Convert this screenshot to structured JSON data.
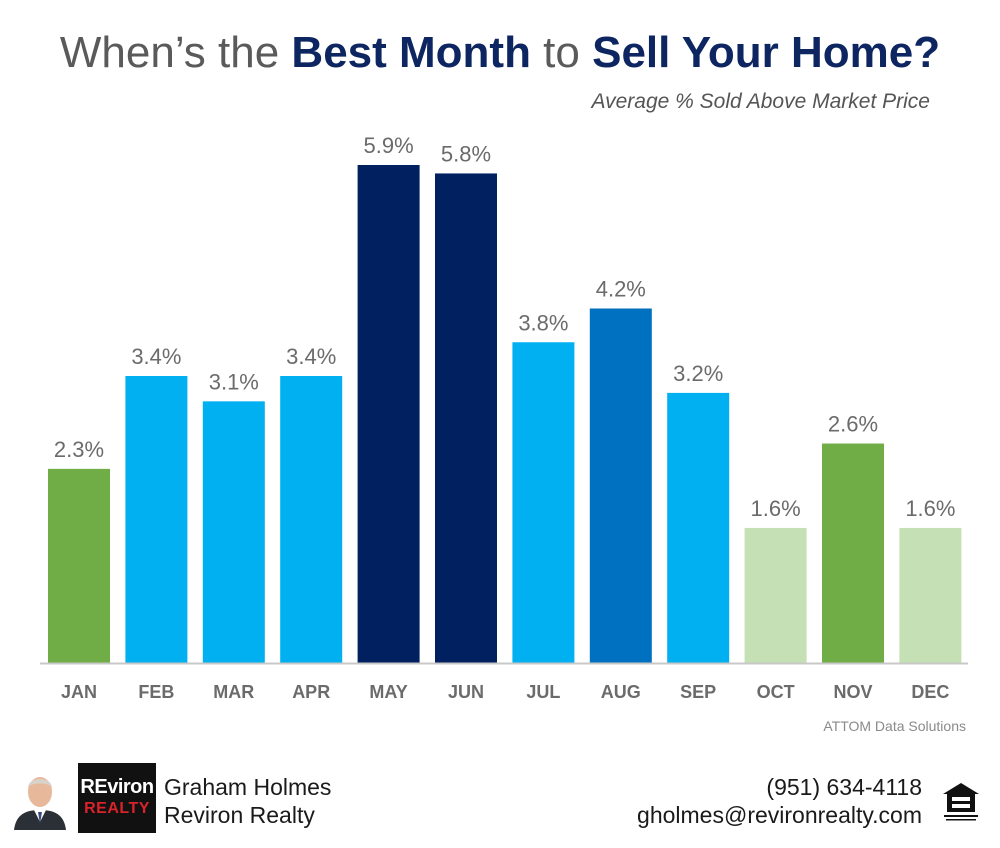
{
  "header": {
    "title_part1": "When’s the ",
    "title_part2": "Best Month",
    "title_part3": " to ",
    "title_part4": "Sell Your Home?",
    "subtitle": "Average % Sold Above Market Price"
  },
  "chart_data": {
    "type": "bar",
    "title": "When’s the Best Month to Sell Your Home?",
    "subtitle": "Average % Sold Above Market Price",
    "categories": [
      "JAN",
      "FEB",
      "MAR",
      "APR",
      "MAY",
      "JUN",
      "JUL",
      "AUG",
      "SEP",
      "OCT",
      "NOV",
      "DEC"
    ],
    "values": [
      2.3,
      3.4,
      3.1,
      3.4,
      5.9,
      5.8,
      3.8,
      4.2,
      3.2,
      1.6,
      2.6,
      1.6
    ],
    "data_labels": [
      "2.3%",
      "3.4%",
      "3.1%",
      "3.4%",
      "5.9%",
      "5.8%",
      "3.8%",
      "4.2%",
      "3.2%",
      "1.6%",
      "2.6%",
      "1.6%"
    ],
    "bar_colors": [
      "#70ad47",
      "#00b0f0",
      "#00b0f0",
      "#00b0f0",
      "#002060",
      "#002060",
      "#00b0f0",
      "#0070c0",
      "#00b0f0",
      "#c5e0b4",
      "#70ad47",
      "#c5e0b4"
    ],
    "ylim": [
      0,
      5.9
    ],
    "grid": false,
    "legend": "none",
    "xlabel": "",
    "ylabel": ""
  },
  "source": "ATTOM Data Solutions",
  "footer": {
    "photo_icon": "agent-photo-icon",
    "logo_line1": "REviron",
    "logo_line2": "REALTY",
    "agent_name": "Graham Holmes",
    "agent_company": "Reviron Realty",
    "phone": "(951) 634-4118",
    "email": "gholmes@revironrealty.com",
    "eho_icon": "equal-housing-opportunity-icon"
  }
}
